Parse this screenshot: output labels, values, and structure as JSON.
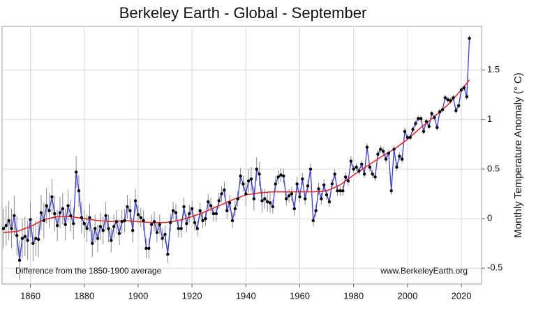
{
  "chart_data": {
    "type": "line",
    "title": "Berkeley Earth - Global - September",
    "y_label": "Monthly Temperature Anomaly (° C)",
    "annotations": [
      "Difference from the 1850-1900 average",
      "www.BerkeleyEarth.org"
    ],
    "x": [
      1850,
      1851,
      1852,
      1853,
      1854,
      1855,
      1856,
      1857,
      1858,
      1859,
      1860,
      1861,
      1862,
      1863,
      1864,
      1865,
      1866,
      1867,
      1868,
      1869,
      1870,
      1871,
      1872,
      1873,
      1874,
      1875,
      1876,
      1877,
      1878,
      1879,
      1880,
      1881,
      1882,
      1883,
      1884,
      1885,
      1886,
      1887,
      1888,
      1889,
      1890,
      1891,
      1892,
      1893,
      1894,
      1895,
      1896,
      1897,
      1898,
      1899,
      1900,
      1901,
      1902,
      1903,
      1904,
      1905,
      1906,
      1907,
      1908,
      1909,
      1910,
      1911,
      1912,
      1913,
      1914,
      1915,
      1916,
      1917,
      1918,
      1919,
      1920,
      1921,
      1922,
      1923,
      1924,
      1925,
      1926,
      1927,
      1928,
      1929,
      1930,
      1931,
      1932,
      1933,
      1934,
      1935,
      1936,
      1937,
      1938,
      1939,
      1940,
      1941,
      1942,
      1943,
      1944,
      1945,
      1946,
      1947,
      1948,
      1949,
      1950,
      1951,
      1952,
      1953,
      1954,
      1955,
      1956,
      1957,
      1958,
      1959,
      1960,
      1961,
      1962,
      1963,
      1964,
      1965,
      1966,
      1967,
      1968,
      1969,
      1970,
      1971,
      1972,
      1973,
      1974,
      1975,
      1976,
      1977,
      1978,
      1979,
      1980,
      1981,
      1982,
      1983,
      1984,
      1985,
      1986,
      1987,
      1988,
      1989,
      1990,
      1991,
      1992,
      1993,
      1994,
      1995,
      1996,
      1997,
      1998,
      1999,
      2000,
      2001,
      2002,
      2003,
      2004,
      2005,
      2006,
      2007,
      2008,
      2009,
      2010,
      2011,
      2012,
      2013,
      2014,
      2015,
      2016,
      2017,
      2018,
      2019,
      2020,
      2021,
      2022,
      2023
    ],
    "values": [
      -0.1,
      -0.07,
      -0.02,
      -0.1,
      0.03,
      -0.17,
      -0.42,
      -0.2,
      -0.18,
      -0.22,
      -0.01,
      -0.25,
      -0.2,
      -0.21,
      0.06,
      -0.02,
      0.13,
      0.08,
      0.22,
      0.05,
      -0.07,
      0.06,
      0.1,
      -0.06,
      0.13,
      0.03,
      -0.05,
      0.47,
      0.28,
      0.01,
      -0.05,
      -0.1,
      0.01,
      -0.25,
      -0.1,
      -0.2,
      -0.08,
      -0.12,
      0.03,
      -0.1,
      -0.22,
      -0.08,
      -0.03,
      -0.15,
      -0.03,
      -0.02,
      0.12,
      0.08,
      -0.12,
      0.18,
      0.04,
      0.01,
      -0.02,
      -0.3,
      -0.3,
      -0.06,
      -0.03,
      -0.14,
      -0.06,
      -0.2,
      -0.16,
      -0.36,
      -0.04,
      0.08,
      0.06,
      -0.1,
      -0.1,
      0.12,
      -0.05,
      0.05,
      0.1,
      -0.04,
      -0.1,
      0.08,
      -0.02,
      0.0,
      0.17,
      0.13,
      0.05,
      0.05,
      0.18,
      0.25,
      0.29,
      0.08,
      0.16,
      -0.02,
      0.1,
      0.2,
      0.43,
      0.35,
      0.25,
      0.38,
      0.4,
      0.2,
      0.5,
      0.45,
      0.18,
      0.2,
      0.17,
      0.16,
      0.12,
      0.35,
      0.42,
      0.44,
      0.43,
      0.2,
      0.23,
      0.25,
      0.1,
      0.35,
      0.22,
      0.4,
      0.2,
      0.33,
      0.5,
      -0.02,
      0.08,
      0.3,
      0.2,
      0.34,
      0.24,
      0.17,
      0.35,
      0.45,
      0.28,
      0.28,
      0.28,
      0.42,
      0.38,
      0.58,
      0.5,
      0.52,
      0.48,
      0.55,
      0.45,
      0.72,
      0.52,
      0.45,
      0.42,
      0.65,
      0.7,
      0.68,
      0.6,
      0.66,
      0.28,
      0.7,
      0.52,
      0.63,
      0.6,
      0.88,
      0.82,
      0.82,
      0.9,
      0.96,
      1.01,
      1.01,
      0.88,
      0.98,
      0.93,
      1.06,
      1.02,
      0.92,
      1.08,
      1.1,
      1.22,
      1.2,
      1.19,
      1.22,
      1.09,
      1.14,
      1.3,
      1.32,
      1.23,
      1.82
    ],
    "errors": [
      0.2,
      0.2,
      0.2,
      0.2,
      0.2,
      0.2,
      0.2,
      0.2,
      0.2,
      0.2,
      0.18,
      0.18,
      0.18,
      0.18,
      0.18,
      0.18,
      0.18,
      0.18,
      0.18,
      0.18,
      0.16,
      0.16,
      0.16,
      0.16,
      0.16,
      0.16,
      0.16,
      0.16,
      0.16,
      0.16,
      0.14,
      0.14,
      0.14,
      0.14,
      0.14,
      0.14,
      0.14,
      0.14,
      0.14,
      0.14,
      0.12,
      0.12,
      0.12,
      0.12,
      0.12,
      0.12,
      0.12,
      0.12,
      0.12,
      0.12,
      0.1,
      0.1,
      0.1,
      0.1,
      0.1,
      0.1,
      0.1,
      0.1,
      0.1,
      0.1,
      0.09,
      0.09,
      0.09,
      0.09,
      0.09,
      0.09,
      0.09,
      0.09,
      0.09,
      0.09,
      0.08,
      0.08,
      0.08,
      0.08,
      0.08,
      0.08,
      0.08,
      0.08,
      0.08,
      0.08,
      0.08,
      0.08,
      0.08,
      0.08,
      0.08,
      0.08,
      0.08,
      0.08,
      0.08,
      0.08,
      0.12,
      0.12,
      0.12,
      0.12,
      0.12,
      0.12,
      0.12,
      0.1,
      0.1,
      0.1,
      0.07,
      0.07,
      0.07,
      0.07,
      0.07,
      0.07,
      0.07,
      0.07,
      0.07,
      0.07,
      0.06,
      0.06,
      0.06,
      0.06,
      0.06,
      0.06,
      0.06,
      0.06,
      0.06,
      0.06,
      0.05,
      0.05,
      0.05,
      0.05,
      0.05,
      0.05,
      0.05,
      0.05,
      0.05,
      0.05,
      0.04,
      0.04,
      0.04,
      0.04,
      0.04,
      0.04,
      0.04,
      0.04,
      0.04,
      0.04,
      0.04,
      0.04,
      0.04,
      0.04,
      0.04,
      0.04,
      0.04,
      0.04,
      0.04,
      0.04,
      0.03,
      0.03,
      0.03,
      0.03,
      0.03,
      0.03,
      0.03,
      0.03,
      0.03,
      0.03,
      0.03,
      0.03,
      0.03,
      0.03,
      0.03,
      0.03,
      0.03,
      0.03,
      0.03,
      0.03,
      0.03,
      0.03,
      0.03,
      0.03
    ],
    "trend_x": [
      1850,
      1855,
      1860,
      1865,
      1870,
      1875,
      1880,
      1885,
      1890,
      1895,
      1900,
      1905,
      1910,
      1915,
      1920,
      1925,
      1930,
      1935,
      1940,
      1945,
      1950,
      1955,
      1960,
      1965,
      1970,
      1975,
      1980,
      1985,
      1990,
      1995,
      2000,
      2005,
      2010,
      2015,
      2020,
      2023
    ],
    "trend": [
      -0.14,
      -0.13,
      -0.08,
      -0.01,
      0.02,
      0.02,
      0.0,
      -0.02,
      -0.03,
      -0.02,
      -0.03,
      -0.04,
      -0.04,
      -0.02,
      0.02,
      0.07,
      0.13,
      0.19,
      0.24,
      0.26,
      0.27,
      0.27,
      0.27,
      0.27,
      0.28,
      0.34,
      0.44,
      0.53,
      0.62,
      0.7,
      0.8,
      0.92,
      1.03,
      1.15,
      1.3,
      1.4
    ],
    "color": "#3b3bd0",
    "marker_color": "#000000",
    "error_color": "#888888",
    "trend_color": "#e02020",
    "xlim": [
      1849.5,
      2027.5
    ],
    "ylim": [
      -0.66,
      1.94
    ],
    "xticks": [
      1860,
      1880,
      1900,
      1920,
      1940,
      1960,
      1980,
      2000,
      2020
    ],
    "yticks": [
      -0.5,
      0,
      0.5,
      1,
      1.5
    ],
    "grid": true
  }
}
